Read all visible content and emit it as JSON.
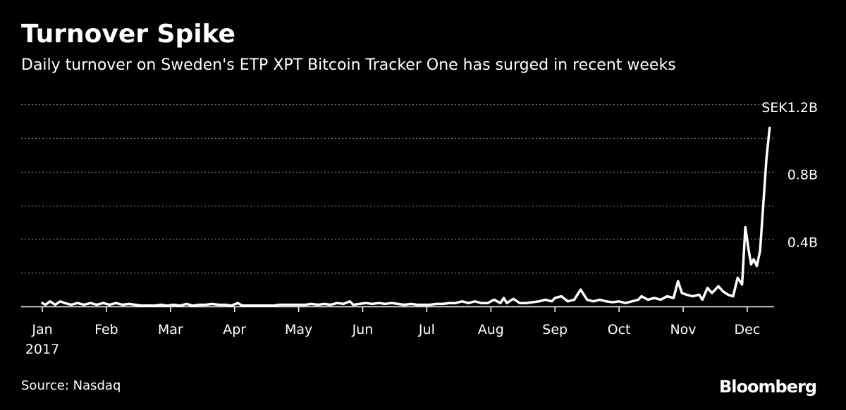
{
  "title": "Turnover Spike",
  "subtitle": "Daily turnover on Sweden's ETP XPT Bitcoin Tracker One has surged in recent weeks",
  "source": "Source: Nasdaq",
  "brand": "Bloomberg",
  "colors": {
    "background": "#000000",
    "line": "#ffffff",
    "grid": "#7a7a7a"
  },
  "chart_data": {
    "type": "line",
    "title": "Turnover Spike",
    "subtitle": "Daily turnover on Sweden's ETP XPT Bitcoin Tracker One has surged in recent weeks",
    "xlabel": "",
    "ylabel": "",
    "y_unit": "SEK billions",
    "ylim": [
      0,
      1.2
    ],
    "xlim": [
      1,
      12.5
    ],
    "grid": true,
    "y_ticks": [
      {
        "value": 1.2,
        "label": "SEK1.2B"
      },
      {
        "value": 0.8,
        "label": "0.8B"
      },
      {
        "value": 0.4,
        "label": "0.4B"
      }
    ],
    "x_ticks": [
      {
        "value": 1,
        "label": "Jan",
        "sublabel": "2017"
      },
      {
        "value": 2,
        "label": "Feb"
      },
      {
        "value": 3,
        "label": "Mar"
      },
      {
        "value": 4,
        "label": "Apr"
      },
      {
        "value": 5,
        "label": "May"
      },
      {
        "value": 6,
        "label": "Jun"
      },
      {
        "value": 7,
        "label": "Jul"
      },
      {
        "value": 8,
        "label": "Aug"
      },
      {
        "value": 9,
        "label": "Sep"
      },
      {
        "value": 10,
        "label": "Oct"
      },
      {
        "value": 11,
        "label": "Nov"
      },
      {
        "value": 12,
        "label": "Dec"
      }
    ],
    "series": [
      {
        "points": [
          [
            1.0,
            0.02
          ],
          [
            1.05,
            0.01
          ],
          [
            1.12,
            0.03
          ],
          [
            1.2,
            0.01
          ],
          [
            1.28,
            0.03
          ],
          [
            1.35,
            0.02
          ],
          [
            1.45,
            0.01
          ],
          [
            1.55,
            0.02
          ],
          [
            1.65,
            0.01
          ],
          [
            1.75,
            0.02
          ],
          [
            1.85,
            0.01
          ],
          [
            1.95,
            0.02
          ],
          [
            2.05,
            0.01
          ],
          [
            2.15,
            0.02
          ],
          [
            2.25,
            0.01
          ],
          [
            2.35,
            0.015
          ],
          [
            2.45,
            0.01
          ],
          [
            2.55,
            0.005
          ],
          [
            2.65,
            0.005
          ],
          [
            2.75,
            0.005
          ],
          [
            2.85,
            0.01
          ],
          [
            2.95,
            0.005
          ],
          [
            3.05,
            0.01
          ],
          [
            3.15,
            0.005
          ],
          [
            3.25,
            0.015
          ],
          [
            3.35,
            0.005
          ],
          [
            3.45,
            0.01
          ],
          [
            3.55,
            0.01
          ],
          [
            3.65,
            0.015
          ],
          [
            3.75,
            0.01
          ],
          [
            3.85,
            0.01
          ],
          [
            3.95,
            0.005
          ],
          [
            4.05,
            0.02
          ],
          [
            4.12,
            0.005
          ],
          [
            4.2,
            0.005
          ],
          [
            4.3,
            0.005
          ],
          [
            4.4,
            0.005
          ],
          [
            4.5,
            0.005
          ],
          [
            4.6,
            0.005
          ],
          [
            4.7,
            0.01
          ],
          [
            4.8,
            0.01
          ],
          [
            4.9,
            0.01
          ],
          [
            5.0,
            0.01
          ],
          [
            5.1,
            0.01
          ],
          [
            5.2,
            0.015
          ],
          [
            5.3,
            0.01
          ],
          [
            5.4,
            0.015
          ],
          [
            5.5,
            0.01
          ],
          [
            5.6,
            0.02
          ],
          [
            5.7,
            0.015
          ],
          [
            5.8,
            0.03
          ],
          [
            5.85,
            0.01
          ],
          [
            5.95,
            0.015
          ],
          [
            6.05,
            0.02
          ],
          [
            6.15,
            0.015
          ],
          [
            6.25,
            0.02
          ],
          [
            6.35,
            0.015
          ],
          [
            6.45,
            0.02
          ],
          [
            6.55,
            0.015
          ],
          [
            6.65,
            0.01
          ],
          [
            6.75,
            0.015
          ],
          [
            6.85,
            0.01
          ],
          [
            6.95,
            0.01
          ],
          [
            7.05,
            0.01
          ],
          [
            7.15,
            0.015
          ],
          [
            7.25,
            0.015
          ],
          [
            7.35,
            0.02
          ],
          [
            7.45,
            0.02
          ],
          [
            7.55,
            0.03
          ],
          [
            7.65,
            0.02
          ],
          [
            7.75,
            0.03
          ],
          [
            7.85,
            0.02
          ],
          [
            7.95,
            0.02
          ],
          [
            8.05,
            0.04
          ],
          [
            8.15,
            0.02
          ],
          [
            8.2,
            0.05
          ],
          [
            8.25,
            0.02
          ],
          [
            8.35,
            0.045
          ],
          [
            8.45,
            0.02
          ],
          [
            8.55,
            0.02
          ],
          [
            8.65,
            0.025
          ],
          [
            8.75,
            0.03
          ],
          [
            8.85,
            0.04
          ],
          [
            8.95,
            0.03
          ],
          [
            9.0,
            0.05
          ],
          [
            9.1,
            0.06
          ],
          [
            9.2,
            0.03
          ],
          [
            9.3,
            0.04
          ],
          [
            9.4,
            0.1
          ],
          [
            9.5,
            0.04
          ],
          [
            9.6,
            0.03
          ],
          [
            9.7,
            0.04
          ],
          [
            9.8,
            0.03
          ],
          [
            9.9,
            0.025
          ],
          [
            10.0,
            0.03
          ],
          [
            10.1,
            0.02
          ],
          [
            10.2,
            0.03
          ],
          [
            10.3,
            0.04
          ],
          [
            10.35,
            0.06
          ],
          [
            10.45,
            0.04
          ],
          [
            10.55,
            0.05
          ],
          [
            10.65,
            0.04
          ],
          [
            10.75,
            0.06
          ],
          [
            10.85,
            0.05
          ],
          [
            10.92,
            0.15
          ],
          [
            10.98,
            0.08
          ],
          [
            11.05,
            0.07
          ],
          [
            11.15,
            0.06
          ],
          [
            11.25,
            0.07
          ],
          [
            11.3,
            0.04
          ],
          [
            11.38,
            0.11
          ],
          [
            11.45,
            0.08
          ],
          [
            11.55,
            0.12
          ],
          [
            11.62,
            0.09
          ],
          [
            11.7,
            0.07
          ],
          [
            11.78,
            0.06
          ],
          [
            11.85,
            0.17
          ],
          [
            11.92,
            0.13
          ],
          [
            11.97,
            0.47
          ],
          [
            12.02,
            0.34
          ],
          [
            12.06,
            0.25
          ],
          [
            12.1,
            0.28
          ],
          [
            12.15,
            0.24
          ],
          [
            12.2,
            0.33
          ],
          [
            12.25,
            0.6
          ],
          [
            12.3,
            0.88
          ],
          [
            12.35,
            1.06
          ]
        ]
      }
    ]
  }
}
